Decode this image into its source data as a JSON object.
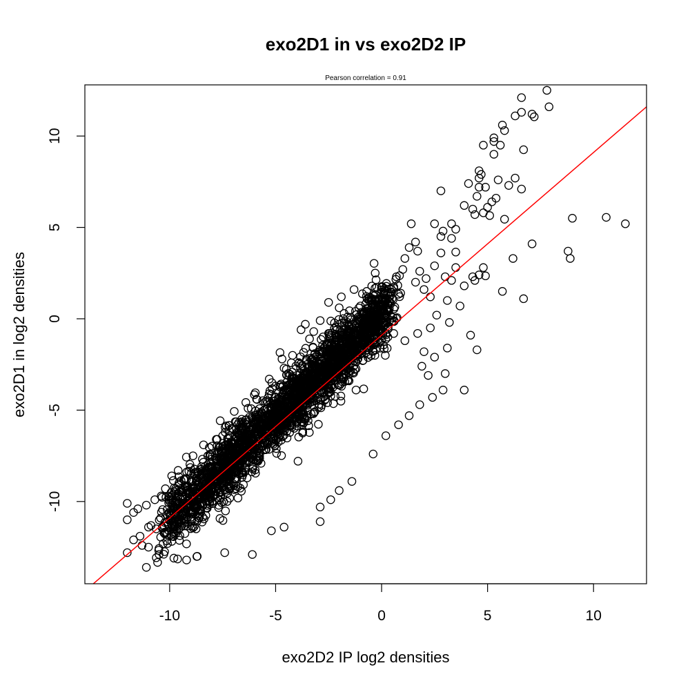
{
  "chart_data": {
    "type": "scatter",
    "title": "exo2D1 in vs exo2D2 IP",
    "subtitle": "Pearson correlation =  0.91",
    "xlabel": "exo2D2 IP log2 densities",
    "ylabel": "exo2D1 in log2 densities",
    "xlim": [
      -14,
      12.5
    ],
    "ylim": [
      -14.5,
      12.8
    ],
    "xticks": [
      -10,
      -5,
      0,
      5,
      10
    ],
    "yticks": [
      -10,
      -5,
      0,
      5,
      10
    ],
    "grid": false,
    "point_color": "#000000",
    "fit_line": {
      "color": "#ff0000",
      "intercept": -0.9,
      "slope": 1.0
    },
    "series": [
      {
        "points": [
          [
            7.8,
            12.5
          ],
          [
            6.6,
            12.1
          ],
          [
            7.9,
            11.6
          ],
          [
            6.6,
            11.3
          ],
          [
            7.1,
            11.2
          ],
          [
            7.2,
            11.05
          ],
          [
            6.3,
            11.1
          ],
          [
            5.7,
            10.6
          ],
          [
            5.8,
            10.3
          ],
          [
            5.3,
            9.9
          ],
          [
            5.3,
            9.7
          ],
          [
            4.8,
            9.5
          ],
          [
            5.6,
            9.5
          ],
          [
            6.7,
            9.25
          ],
          [
            5.3,
            9.0
          ],
          [
            4.6,
            8.1
          ],
          [
            4.7,
            7.9
          ],
          [
            4.6,
            7.7
          ],
          [
            5.5,
            7.6
          ],
          [
            6.3,
            7.7
          ],
          [
            4.1,
            7.4
          ],
          [
            4.6,
            7.2
          ],
          [
            4.9,
            7.2
          ],
          [
            6.0,
            7.3
          ],
          [
            6.6,
            7.1
          ],
          [
            2.8,
            7.0
          ],
          [
            4.5,
            6.7
          ],
          [
            5.4,
            6.6
          ],
          [
            5.2,
            6.4
          ],
          [
            3.9,
            6.2
          ],
          [
            4.3,
            6.0
          ],
          [
            5.0,
            6.1
          ],
          [
            4.8,
            5.8
          ],
          [
            4.4,
            5.7
          ],
          [
            5.1,
            5.65
          ],
          [
            5.8,
            5.45
          ],
          [
            9.0,
            5.5
          ],
          [
            10.6,
            5.55
          ],
          [
            11.5,
            5.2
          ],
          [
            1.4,
            5.2
          ],
          [
            2.5,
            5.2
          ],
          [
            3.3,
            5.2
          ],
          [
            2.9,
            4.8
          ],
          [
            3.5,
            4.9
          ],
          [
            2.8,
            4.5
          ],
          [
            3.3,
            4.4
          ],
          [
            1.6,
            4.2
          ],
          [
            7.1,
            4.1
          ],
          [
            1.3,
            3.9
          ],
          [
            8.8,
            3.7
          ],
          [
            1.7,
            3.7
          ],
          [
            2.8,
            3.6
          ],
          [
            3.5,
            3.65
          ],
          [
            8.9,
            3.3
          ],
          [
            6.2,
            3.3
          ],
          [
            1.1,
            3.3
          ],
          [
            2.5,
            2.9
          ],
          [
            3.5,
            2.8
          ],
          [
            4.8,
            2.8
          ],
          [
            1.0,
            2.7
          ],
          [
            1.8,
            2.6
          ],
          [
            4.6,
            2.4
          ],
          [
            4.9,
            2.35
          ],
          [
            -0.3,
            2.5
          ],
          [
            0.7,
            2.3
          ],
          [
            2.1,
            2.2
          ],
          [
            3.3,
            2.1
          ],
          [
            4.4,
            2.1
          ],
          [
            1.6,
            2.0
          ],
          [
            5.7,
            1.5
          ],
          [
            -1.3,
            1.6
          ],
          [
            -0.7,
            1.5
          ],
          [
            0.2,
            1.4
          ],
          [
            0.9,
            1.4
          ],
          [
            6.7,
            1.1
          ],
          [
            -1.9,
            1.2
          ],
          [
            -0.6,
            1.0
          ],
          [
            0.4,
            0.9
          ],
          [
            -2.5,
            0.9
          ],
          [
            -1.0,
            0.7
          ],
          [
            -2.0,
            0.6
          ],
          [
            -0.8,
            0.3
          ],
          [
            -1.6,
            0.1
          ],
          [
            -2.9,
            -0.1
          ],
          [
            -2.0,
            -0.3
          ],
          [
            -3.6,
            -0.3
          ],
          [
            -3.8,
            -0.6
          ],
          [
            -3.2,
            -0.7
          ],
          [
            -2.5,
            -0.8
          ],
          [
            -3.4,
            -1.1
          ],
          [
            -2.2,
            -1.3
          ],
          [
            4.2,
            -0.9
          ],
          [
            4.5,
            -1.7
          ],
          [
            -4.7,
            -2.2
          ],
          [
            -4.2,
            -2.0
          ],
          [
            -3.9,
            -2.4
          ],
          [
            -3.3,
            -2.5
          ],
          [
            -4.6,
            -2.7
          ],
          [
            -5.3,
            -3.3
          ],
          [
            -4.0,
            -3.1
          ],
          [
            -4.3,
            -3.6
          ],
          [
            -4.6,
            -3.9
          ],
          [
            -5.3,
            -4.1
          ],
          [
            -5.9,
            -4.4
          ],
          [
            -5.2,
            -4.8
          ],
          [
            -6.3,
            -4.9
          ],
          [
            -5.6,
            -5.2
          ],
          [
            -5.9,
            -5.6
          ],
          [
            -6.6,
            -5.5
          ],
          [
            -7.2,
            -6.1
          ],
          [
            -7.5,
            -6.4
          ],
          [
            -7.8,
            -6.6
          ],
          [
            -8.4,
            -6.9
          ],
          [
            -8.9,
            -7.5
          ],
          [
            -9.6,
            -8.3
          ],
          [
            -8.5,
            -8.1
          ],
          [
            -9.9,
            -8.6
          ],
          [
            -9.3,
            -8.8
          ],
          [
            -10.2,
            -9.3
          ],
          [
            -10.4,
            -9.7
          ],
          [
            -10.7,
            -9.9
          ],
          [
            -11.1,
            -10.2
          ],
          [
            -11.5,
            -10.4
          ],
          [
            -12.0,
            -10.1
          ],
          [
            -11.7,
            -10.6
          ],
          [
            -12.0,
            -11.0
          ],
          [
            -11.0,
            -11.4
          ],
          [
            -11.4,
            -11.9
          ],
          [
            -11.7,
            -12.1
          ],
          [
            -11.3,
            -12.4
          ],
          [
            -12.0,
            -12.8
          ],
          [
            -11.0,
            -12.5
          ],
          [
            -10.5,
            -12.9
          ],
          [
            -10.1,
            -12.3
          ],
          [
            -11.1,
            -13.6
          ],
          [
            -9.8,
            -13.1
          ],
          [
            -9.2,
            -13.2
          ],
          [
            -8.7,
            -13.0
          ],
          [
            -7.4,
            -12.8
          ],
          [
            -6.1,
            -12.9
          ],
          [
            -5.2,
            -11.6
          ],
          [
            -4.6,
            -11.4
          ],
          [
            -2.9,
            -11.1
          ],
          [
            -2.9,
            -10.3
          ],
          [
            -2.4,
            -9.9
          ],
          [
            -2.0,
            -9.4
          ],
          [
            -1.4,
            -8.9
          ],
          [
            -0.4,
            -7.4
          ],
          [
            0.2,
            -6.4
          ],
          [
            0.8,
            -5.8
          ],
          [
            1.3,
            -5.3
          ],
          [
            1.8,
            -4.7
          ],
          [
            2.4,
            -4.3
          ],
          [
            2.9,
            -3.9
          ],
          [
            3.9,
            -3.9
          ],
          [
            3.0,
            -3.0
          ],
          [
            2.2,
            -3.1
          ],
          [
            1.9,
            -2.6
          ],
          [
            2.5,
            -2.1
          ],
          [
            3.1,
            -1.6
          ],
          [
            2.0,
            -1.8
          ],
          [
            1.1,
            -1.2
          ],
          [
            1.7,
            -0.8
          ],
          [
            2.3,
            -0.5
          ],
          [
            3.2,
            -0.2
          ],
          [
            2.6,
            0.2
          ],
          [
            3.7,
            0.7
          ],
          [
            3.1,
            1.0
          ],
          [
            2.3,
            1.2
          ],
          [
            3.9,
            1.8
          ],
          [
            4.3,
            2.3
          ],
          [
            3.0,
            2.3
          ],
          [
            2.0,
            1.6
          ]
        ]
      }
    ]
  }
}
